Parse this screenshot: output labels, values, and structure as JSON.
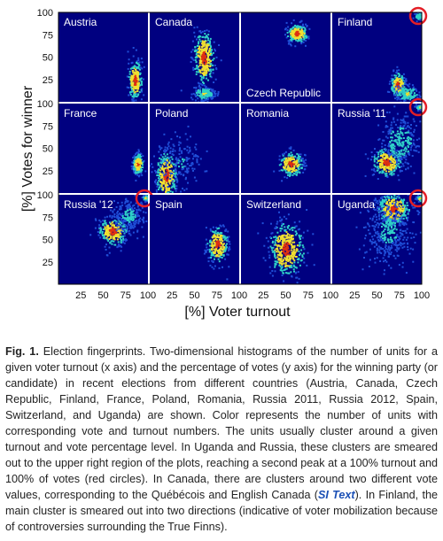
{
  "chart_data": {
    "type": "heatmap",
    "xlabel": "[%] Voter turnout",
    "ylabel": "[%] Votes for winner",
    "xlim": [
      0,
      100
    ],
    "ylim": [
      0,
      100
    ],
    "x_ticks": [
      25,
      50,
      75,
      100
    ],
    "y_ticks": [
      25,
      50,
      75,
      100
    ],
    "panels": [
      {
        "name": "Austria",
        "clusters": [
          {
            "x": 85,
            "y": 25,
            "sx": 4,
            "sy": 11,
            "w": 1,
            "n": 260
          }
        ]
      },
      {
        "name": "Canada",
        "clusters": [
          {
            "x": 60,
            "y": 50,
            "sx": 6,
            "sy": 15,
            "w": 1,
            "n": 360
          },
          {
            "x": 60,
            "y": 10,
            "sx": 6,
            "sy": 4,
            "w": 0.6,
            "n": 160
          }
        ]
      },
      {
        "name": "Czech Republic",
        "clusters": [
          {
            "x": 62,
            "y": 77,
            "sx": 6,
            "sy": 5,
            "w": 1,
            "n": 240
          }
        ]
      },
      {
        "name": "Finland",
        "clusters": [
          {
            "x": 73,
            "y": 20,
            "sx": 4,
            "sy": 7,
            "w": 1,
            "n": 200
          },
          {
            "x": 83,
            "y": 10,
            "sx": 7,
            "sy": 5,
            "w": 0.6,
            "n": 140
          },
          {
            "x": 96,
            "y": 96,
            "sx": 2.5,
            "sy": 2.5,
            "w": 0.5,
            "n": 45
          }
        ]
      },
      {
        "name": "France",
        "clusters": [
          {
            "x": 88,
            "y": 33,
            "sx": 3,
            "sy": 6,
            "w": 1,
            "n": 200
          }
        ]
      },
      {
        "name": "Poland",
        "clusters": [
          {
            "x": 18,
            "y": 20,
            "sx": 6,
            "sy": 14,
            "w": 1,
            "n": 320
          },
          {
            "x": 35,
            "y": 35,
            "sx": 12,
            "sy": 14,
            "w": 0.3,
            "n": 140
          }
        ]
      },
      {
        "name": "Romania",
        "clusters": [
          {
            "x": 55,
            "y": 33,
            "sx": 7,
            "sy": 7,
            "w": 1,
            "n": 220
          }
        ]
      },
      {
        "name": "Russia '11",
        "clusters": [
          {
            "x": 60,
            "y": 35,
            "sx": 8,
            "sy": 8,
            "w": 1,
            "n": 260
          },
          {
            "x": 75,
            "y": 58,
            "sx": 11,
            "sy": 14,
            "w": 0.45,
            "n": 260
          },
          {
            "x": 97,
            "y": 97,
            "sx": 2,
            "sy": 2,
            "w": 0.7,
            "n": 45
          }
        ]
      },
      {
        "name": "Russia '12",
        "clusters": [
          {
            "x": 60,
            "y": 60,
            "sx": 8,
            "sy": 8,
            "w": 1,
            "n": 260
          },
          {
            "x": 78,
            "y": 78,
            "sx": 10,
            "sy": 10,
            "w": 0.35,
            "n": 220
          },
          {
            "x": 97,
            "y": 97,
            "sx": 2,
            "sy": 2,
            "w": 0.7,
            "n": 45
          }
        ]
      },
      {
        "name": "Spain",
        "clusters": [
          {
            "x": 75,
            "y": 45,
            "sx": 6,
            "sy": 10,
            "w": 1,
            "n": 260
          }
        ]
      },
      {
        "name": "Switzerland",
        "clusters": [
          {
            "x": 50,
            "y": 40,
            "sx": 10,
            "sy": 15,
            "w": 1,
            "n": 420
          }
        ]
      },
      {
        "name": "Uganda",
        "clusters": [
          {
            "x": 68,
            "y": 85,
            "sx": 9,
            "sy": 9,
            "w": 1,
            "n": 320
          },
          {
            "x": 62,
            "y": 60,
            "sx": 13,
            "sy": 18,
            "w": 0.35,
            "n": 380
          },
          {
            "x": 97,
            "y": 97,
            "sx": 2,
            "sy": 2,
            "w": 0.7,
            "n": 40
          }
        ]
      }
    ],
    "highlights": [
      "Finland",
      "Russia '11",
      "Russia '12",
      "Uganda"
    ],
    "colors": {
      "background": "#000080",
      "low": "#1f4fd8",
      "mid": "#2fd0c8",
      "high": "#f0e030",
      "peak": "#e03010",
      "circle": "#e41e26"
    }
  },
  "caption": {
    "label": "Fig. 1.",
    "part1": "Election fingerprints. Two-dimensional histograms of the number of units for a given voter turnout (x axis) and the percentage of votes (y axis) for the winning party (or candidate) in recent elections from different countries (Austria, Canada, Czech Republic, Finland, France, Poland, Romania, Russia 2011, Russia 2012, Spain, Switzerland, and Uganda) are shown. Color represents the number of units with corresponding vote and turnout numbers. The units usually cluster around a given turnout and vote percentage level. In Uganda and Russia, these clusters are smeared out to the upper right region of the plots, reaching a second peak at a 100% turnout and 100% of votes (red circles). In Canada, there are clusters around two different vote values, corresponding to the Québécois and English Canada (",
    "link": "SI Text",
    "part2": "). In Finland, the main cluster is smeared out into two directions (indicative of voter mobilization because of controversies surrounding the True Finns)."
  }
}
